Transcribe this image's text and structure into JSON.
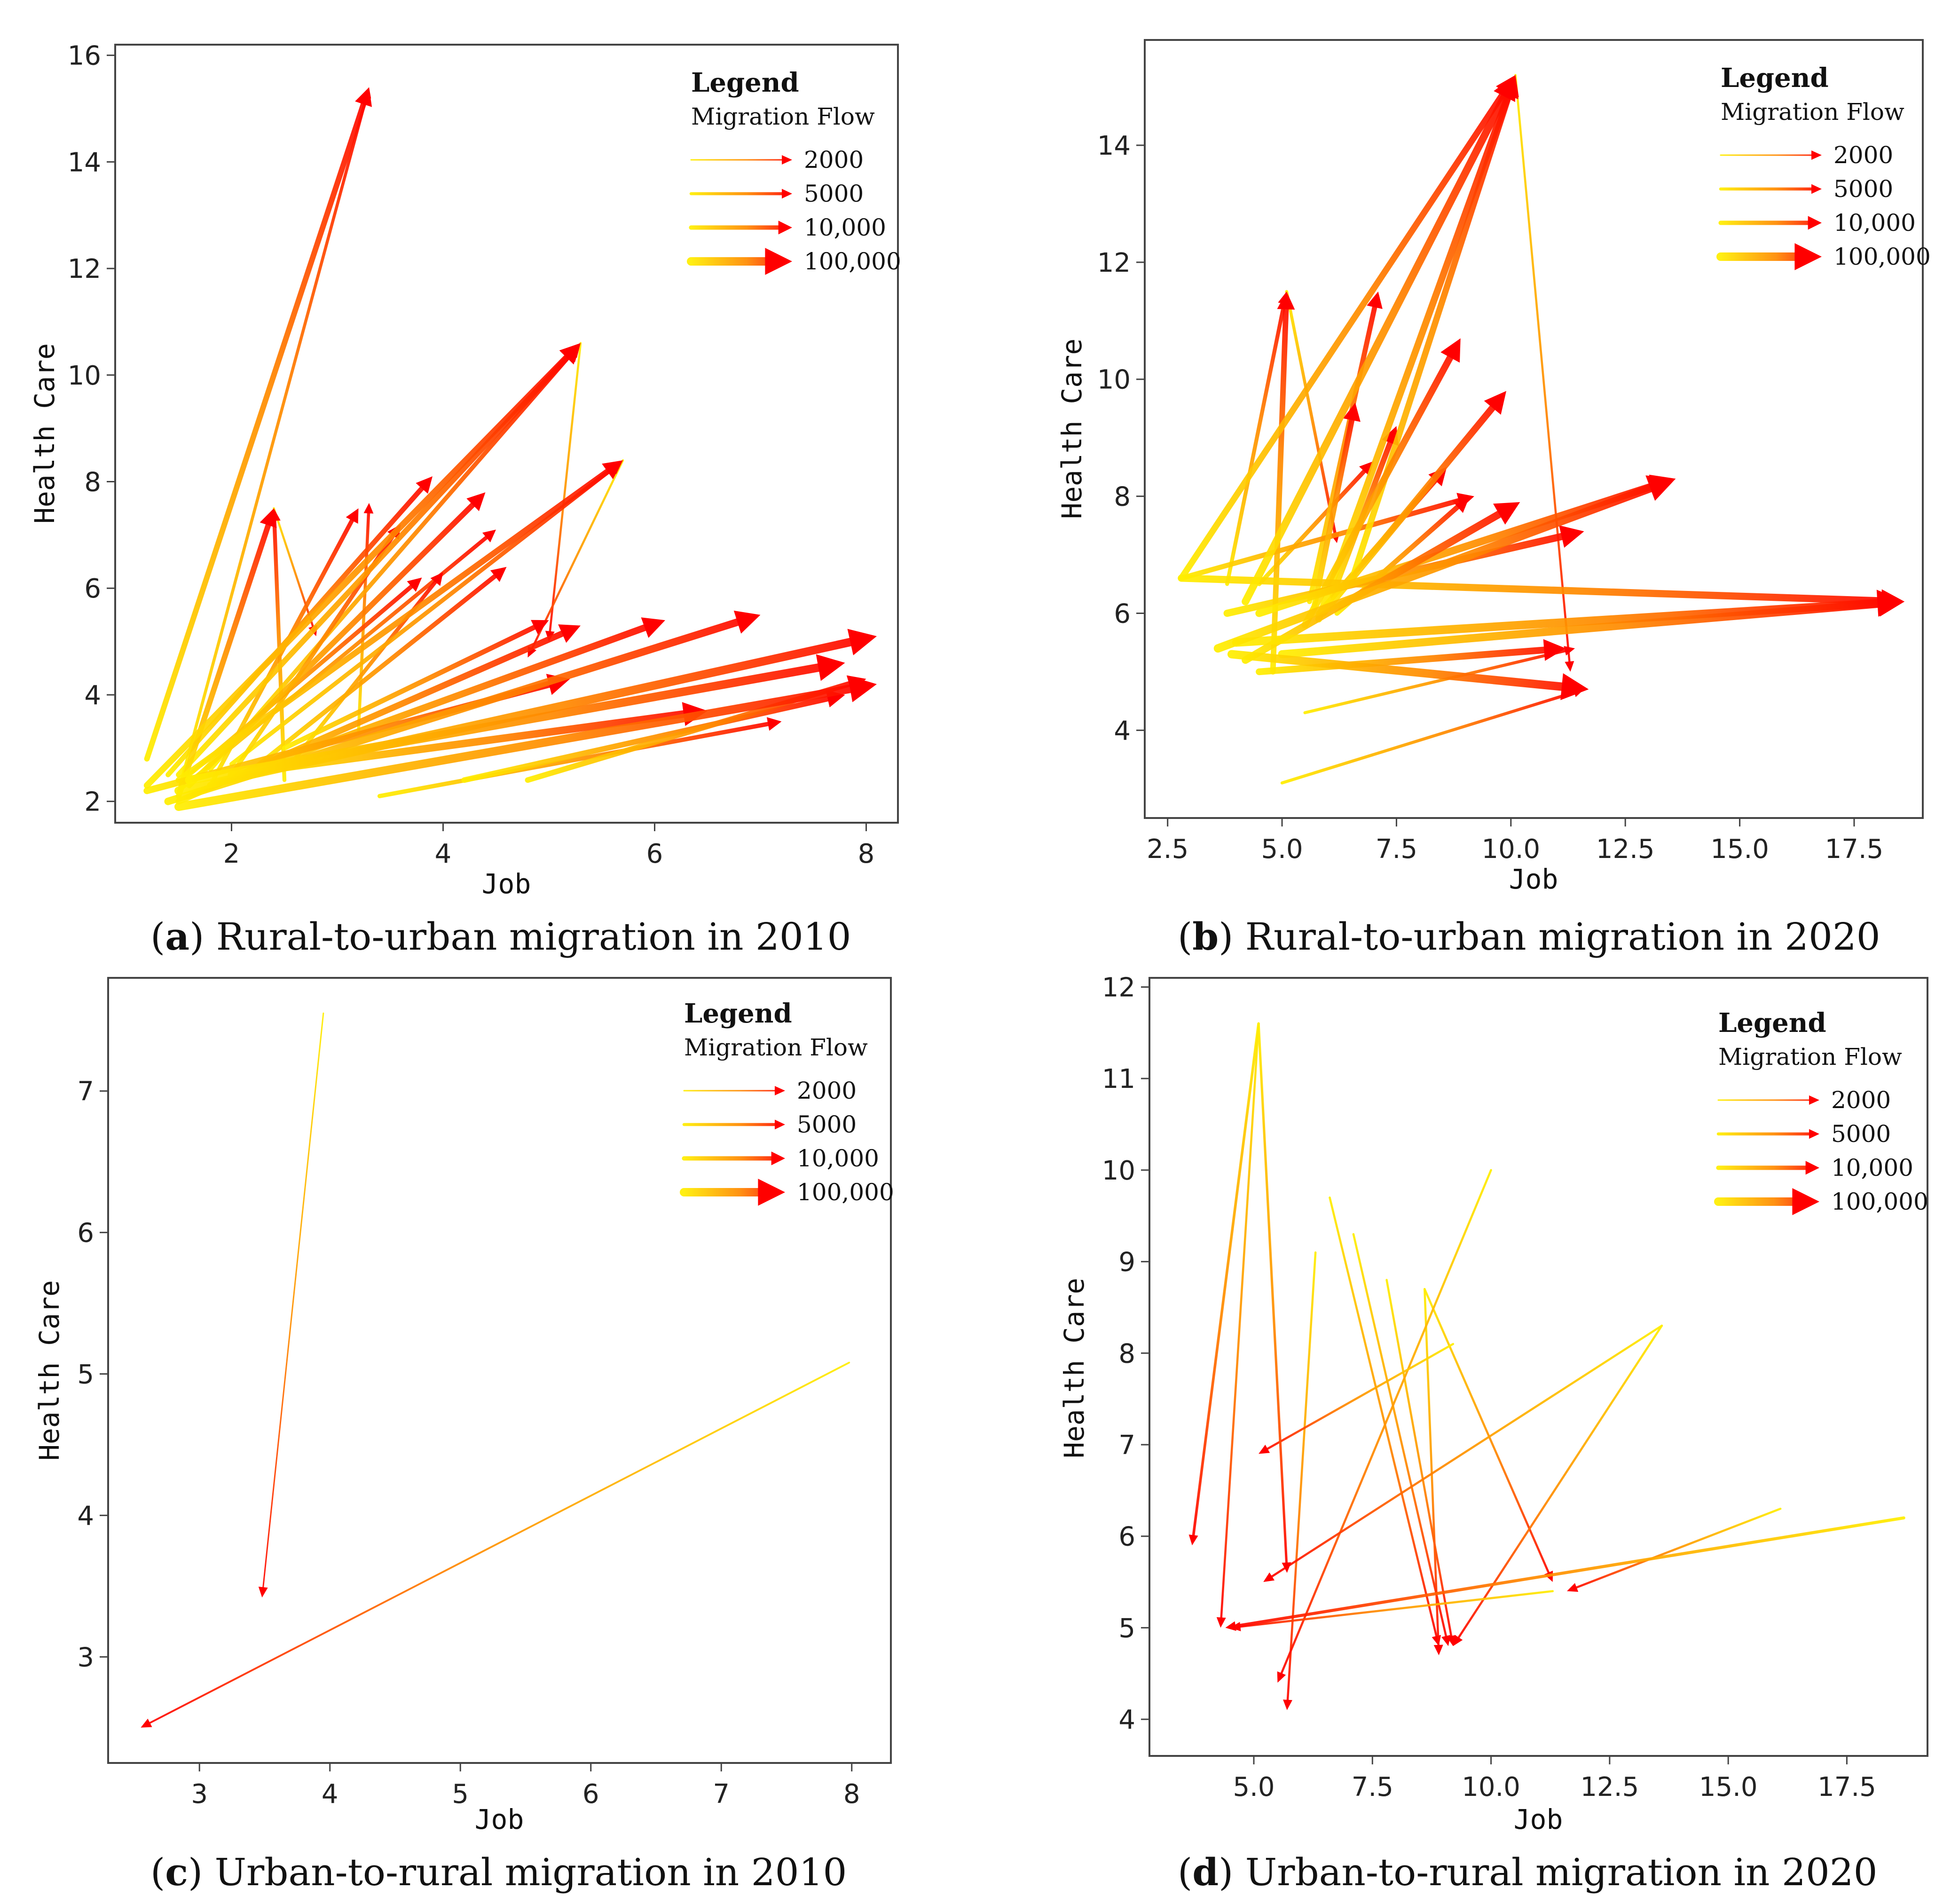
{
  "figure": {
    "panels": [
      {
        "caption_letter": "a",
        "caption_text": " Rural-to-urban migration in 2010"
      },
      {
        "caption_letter": "b",
        "caption_text": " Rural-to-urban migration in 2020"
      },
      {
        "caption_letter": "c",
        "caption_text": " Urban-to-rural migration in 2010"
      },
      {
        "caption_letter": "d",
        "caption_text": " Urban-to-rural migration in 2020"
      }
    ]
  },
  "legend": {
    "title": "Legend",
    "subtitle": "Migration Flow",
    "items": [
      {
        "label": "2000",
        "value": 2000
      },
      {
        "label": "5000",
        "value": 5000
      },
      {
        "label": "10,000",
        "value": 10000
      },
      {
        "label": "100,000",
        "value": 100000
      }
    ]
  },
  "colors": {
    "low": "#ffee00",
    "mid": "#ff8a00",
    "high": "#ff0000",
    "axis": "#444444"
  },
  "chart_data": [
    {
      "type": "flow-map",
      "title": "Rural-to-urban migration in 2010",
      "xlabel": "Job",
      "ylabel": "Health Care",
      "xlim": [
        0.9,
        8.3
      ],
      "ylim": [
        1.6,
        16.2
      ],
      "xticks": [
        2,
        4,
        6,
        8
      ],
      "xtick_labels": [
        "2",
        "4",
        "6",
        "8"
      ],
      "yticks": [
        2,
        4,
        6,
        8,
        10,
        12,
        14,
        16
      ],
      "ytick_labels": [
        "2",
        "4",
        "6",
        "8",
        "10",
        "12",
        "14",
        "16"
      ],
      "flows": [
        {
          "from": [
            1.2,
            2.8
          ],
          "to": [
            3.3,
            15.4
          ],
          "flow": 20000
        },
        {
          "from": [
            1.5,
            2.2
          ],
          "to": [
            3.3,
            15.4
          ],
          "flow": 5000
        },
        {
          "from": [
            1.2,
            2.3
          ],
          "to": [
            5.3,
            10.6
          ],
          "flow": 30000
        },
        {
          "from": [
            1.5,
            2.5
          ],
          "to": [
            5.3,
            10.6
          ],
          "flow": 20000
        },
        {
          "from": [
            1.8,
            2.6
          ],
          "to": [
            5.3,
            10.6
          ],
          "flow": 10000
        },
        {
          "from": [
            1.5,
            2.4
          ],
          "to": [
            5.7,
            8.4
          ],
          "flow": 25000
        },
        {
          "from": [
            2.0,
            2.7
          ],
          "to": [
            5.7,
            8.4
          ],
          "flow": 10000
        },
        {
          "from": [
            1.5,
            2.1
          ],
          "to": [
            2.4,
            7.5
          ],
          "flow": 20000
        },
        {
          "from": [
            2.5,
            2.4
          ],
          "to": [
            2.4,
            7.5
          ],
          "flow": 8000
        },
        {
          "from": [
            1.8,
            2.3
          ],
          "to": [
            3.2,
            7.5
          ],
          "flow": 10000
        },
        {
          "from": [
            1.4,
            2.5
          ],
          "to": [
            3.9,
            8.1
          ],
          "flow": 15000
        },
        {
          "from": [
            1.6,
            2.3
          ],
          "to": [
            4.4,
            7.8
          ],
          "flow": 20000
        },
        {
          "from": [
            2.0,
            2.5
          ],
          "to": [
            3.6,
            7.2
          ],
          "flow": 10000
        },
        {
          "from": [
            1.5,
            2.2
          ],
          "to": [
            4.5,
            7.1
          ],
          "flow": 8000
        },
        {
          "from": [
            2.2,
            2.6
          ],
          "to": [
            4.6,
            6.4
          ],
          "flow": 12000
        },
        {
          "from": [
            1.6,
            2.5
          ],
          "to": [
            3.8,
            6.2
          ],
          "flow": 10000
        },
        {
          "from": [
            1.5,
            2.0
          ],
          "to": [
            5.3,
            5.3
          ],
          "flow": 30000
        },
        {
          "from": [
            1.8,
            2.3
          ],
          "to": [
            6.1,
            5.4
          ],
          "flow": 40000
        },
        {
          "from": [
            1.4,
            2.0
          ],
          "to": [
            7.0,
            5.5
          ],
          "flow": 60000
        },
        {
          "from": [
            1.5,
            2.2
          ],
          "to": [
            8.1,
            5.1
          ],
          "flow": 100000
        },
        {
          "from": [
            1.6,
            2.4
          ],
          "to": [
            7.8,
            4.6
          ],
          "flow": 100000
        },
        {
          "from": [
            1.5,
            1.9
          ],
          "to": [
            8.1,
            4.2
          ],
          "flow": 100000
        },
        {
          "from": [
            2.0,
            2.5
          ],
          "to": [
            6.5,
            3.7
          ],
          "flow": 60000
        },
        {
          "from": [
            1.2,
            2.2
          ],
          "to": [
            5.2,
            4.3
          ],
          "flow": 40000
        },
        {
          "from": [
            3.4,
            2.1
          ],
          "to": [
            7.2,
            3.5
          ],
          "flow": 10000
        },
        {
          "from": [
            4.2,
            2.4
          ],
          "to": [
            7.8,
            4.0
          ],
          "flow": 20000
        },
        {
          "from": [
            4.8,
            2.4
          ],
          "to": [
            8.0,
            4.3
          ],
          "flow": 20000
        },
        {
          "from": [
            2.5,
            3.0
          ],
          "to": [
            5.0,
            5.4
          ],
          "flow": 15000
        },
        {
          "from": [
            3.2,
            3.3
          ],
          "to": [
            3.3,
            7.6
          ],
          "flow": 5000
        },
        {
          "from": [
            2.6,
            2.8
          ],
          "to": [
            4.0,
            6.3
          ],
          "flow": 8000
        },
        {
          "from": [
            5.3,
            10.6
          ],
          "to": [
            5.0,
            5.0
          ],
          "flow": 3000
        },
        {
          "from": [
            5.7,
            8.4
          ],
          "to": [
            4.8,
            4.7
          ],
          "flow": 3000
        },
        {
          "from": [
            2.4,
            7.5
          ],
          "to": [
            2.8,
            5.1
          ],
          "flow": 3000
        }
      ]
    },
    {
      "type": "flow-map",
      "title": "Rural-to-urban migration in 2020",
      "xlabel": "Job",
      "ylabel": "Health Care",
      "xlim": [
        2.0,
        19.0
      ],
      "ylim": [
        2.5,
        15.8
      ],
      "xticks": [
        2.5,
        5.0,
        7.5,
        10.0,
        12.5,
        15.0,
        17.5
      ],
      "xtick_labels": [
        "2.5",
        "5.0",
        "7.5",
        "10.0",
        "12.5",
        "15.0",
        "17.5"
      ],
      "yticks": [
        4,
        6,
        8,
        10,
        12,
        14
      ],
      "ytick_labels": [
        "4",
        "6",
        "8",
        "10",
        "12",
        "14"
      ],
      "flows": [
        {
          "from": [
            2.8,
            6.6
          ],
          "to": [
            10.1,
            15.2
          ],
          "flow": 30000
        },
        {
          "from": [
            4.2,
            6.2
          ],
          "to": [
            10.1,
            15.2
          ],
          "flow": 60000
        },
        {
          "from": [
            5.8,
            5.9
          ],
          "to": [
            10.1,
            15.2
          ],
          "flow": 40000
        },
        {
          "from": [
            6.5,
            6.5
          ],
          "to": [
            10.1,
            15.2
          ],
          "flow": 30000
        },
        {
          "from": [
            2.8,
            6.6
          ],
          "to": [
            18.6,
            6.2
          ],
          "flow": 50000
        },
        {
          "from": [
            4.0,
            5.5
          ],
          "to": [
            18.6,
            6.2
          ],
          "flow": 100000
        },
        {
          "from": [
            5.0,
            5.3
          ],
          "to": [
            18.6,
            6.2
          ],
          "flow": 80000
        },
        {
          "from": [
            3.6,
            5.4
          ],
          "to": [
            13.6,
            8.3
          ],
          "flow": 100000
        },
        {
          "from": [
            4.5,
            6.0
          ],
          "to": [
            13.6,
            8.3
          ],
          "flow": 60000
        },
        {
          "from": [
            3.8,
            6.0
          ],
          "to": [
            11.6,
            7.4
          ],
          "flow": 50000
        },
        {
          "from": [
            3.9,
            5.3
          ],
          "to": [
            11.7,
            4.7
          ],
          "flow": 100000
        },
        {
          "from": [
            4.5,
            5.0
          ],
          "to": [
            11.2,
            5.4
          ],
          "flow": 40000
        },
        {
          "from": [
            4.2,
            5.2
          ],
          "to": [
            10.2,
            7.9
          ],
          "flow": 60000
        },
        {
          "from": [
            4.8,
            5.0
          ],
          "to": [
            5.1,
            11.5
          ],
          "flow": 20000
        },
        {
          "from": [
            5.6,
            6.2
          ],
          "to": [
            7.1,
            11.5
          ],
          "flow": 15000
        },
        {
          "from": [
            5.5,
            5.8
          ],
          "to": [
            8.9,
            10.7
          ],
          "flow": 40000
        },
        {
          "from": [
            5.9,
            6.0
          ],
          "to": [
            9.9,
            9.8
          ],
          "flow": 40000
        },
        {
          "from": [
            5.7,
            6.1
          ],
          "to": [
            6.6,
            9.6
          ],
          "flow": 20000
        },
        {
          "from": [
            6.1,
            6.3
          ],
          "to": [
            7.5,
            9.2
          ],
          "flow": 20000
        },
        {
          "from": [
            5.8,
            6.0
          ],
          "to": [
            8.6,
            8.5
          ],
          "flow": 20000
        },
        {
          "from": [
            6.2,
            6.0
          ],
          "to": [
            9.1,
            8.0
          ],
          "flow": 15000
        },
        {
          "from": [
            5.0,
            3.1
          ],
          "to": [
            11.6,
            4.7
          ],
          "flow": 5000
        },
        {
          "from": [
            5.5,
            4.3
          ],
          "to": [
            11.4,
            5.4
          ],
          "flow": 5000
        },
        {
          "from": [
            3.8,
            6.5
          ],
          "to": [
            5.1,
            11.5
          ],
          "flow": 8000
        },
        {
          "from": [
            10.1,
            15.2
          ],
          "to": [
            11.3,
            5.0
          ],
          "flow": 3000
        },
        {
          "from": [
            5.1,
            11.5
          ],
          "to": [
            6.2,
            7.2
          ],
          "flow": 5000
        },
        {
          "from": [
            2.8,
            6.6
          ],
          "to": [
            9.2,
            8.0
          ],
          "flow": 15000
        },
        {
          "from": [
            4.5,
            6.5
          ],
          "to": [
            7.0,
            8.6
          ],
          "flow": 10000
        }
      ]
    },
    {
      "type": "flow-map",
      "title": "Urban-to-rural migration in 2010",
      "xlabel": "Job",
      "ylabel": "Health Care",
      "xlim": [
        2.3,
        8.3
      ],
      "ylim": [
        2.25,
        7.8
      ],
      "xticks": [
        3,
        4,
        5,
        6,
        7,
        8
      ],
      "xtick_labels": [
        "3",
        "4",
        "5",
        "6",
        "7",
        "8"
      ],
      "yticks": [
        3,
        4,
        5,
        6,
        7
      ],
      "ytick_labels": [
        "3",
        "4",
        "5",
        "6",
        "7"
      ],
      "flows": [
        {
          "from": [
            3.95,
            7.55
          ],
          "to": [
            3.48,
            3.42
          ],
          "flow": 2000
        },
        {
          "from": [
            7.98,
            5.08
          ],
          "to": [
            2.55,
            2.5
          ],
          "flow": 2500
        }
      ]
    },
    {
      "type": "flow-map",
      "title": "Urban-to-rural migration in 2020",
      "xlabel": "Job",
      "ylabel": "Health Care",
      "xlim": [
        2.8,
        19.2
      ],
      "ylim": [
        3.6,
        12.1
      ],
      "xticks": [
        5.0,
        7.5,
        10.0,
        12.5,
        15.0,
        17.5
      ],
      "xtick_labels": [
        "5.0",
        "7.5",
        "10.0",
        "12.5",
        "15.0",
        "17.5"
      ],
      "yticks": [
        4,
        5,
        6,
        7,
        8,
        9,
        10,
        11,
        12
      ],
      "ytick_labels": [
        "4",
        "5",
        "6",
        "7",
        "8",
        "9",
        "10",
        "11",
        "12"
      ],
      "flows": [
        {
          "from": [
            5.1,
            11.6
          ],
          "to": [
            3.7,
            5.9
          ],
          "flow": 4000
        },
        {
          "from": [
            5.1,
            11.6
          ],
          "to": [
            5.7,
            5.6
          ],
          "flow": 3500
        },
        {
          "from": [
            5.1,
            11.6
          ],
          "to": [
            4.3,
            5.0
          ],
          "flow": 3000
        },
        {
          "from": [
            6.3,
            9.1
          ],
          "to": [
            5.7,
            4.1
          ],
          "flow": 3000
        },
        {
          "from": [
            6.6,
            9.7
          ],
          "to": [
            8.9,
            4.8
          ],
          "flow": 3000
        },
        {
          "from": [
            7.1,
            9.3
          ],
          "to": [
            9.1,
            4.8
          ],
          "flow": 3000
        },
        {
          "from": [
            7.8,
            8.8
          ],
          "to": [
            9.2,
            4.8
          ],
          "flow": 3000
        },
        {
          "from": [
            8.6,
            8.7
          ],
          "to": [
            11.3,
            5.5
          ],
          "flow": 3000
        },
        {
          "from": [
            8.6,
            8.7
          ],
          "to": [
            8.9,
            4.7
          ],
          "flow": 3000
        },
        {
          "from": [
            10.0,
            10.0
          ],
          "to": [
            5.5,
            4.4
          ],
          "flow": 3000
        },
        {
          "from": [
            9.2,
            8.1
          ],
          "to": [
            5.1,
            6.9
          ],
          "flow": 3000
        },
        {
          "from": [
            13.6,
            8.3
          ],
          "to": [
            5.2,
            5.5
          ],
          "flow": 3000
        },
        {
          "from": [
            13.6,
            8.3
          ],
          "to": [
            9.2,
            4.8
          ],
          "flow": 3000
        },
        {
          "from": [
            16.1,
            6.3
          ],
          "to": [
            11.6,
            5.4
          ],
          "flow": 3000
        },
        {
          "from": [
            18.7,
            6.2
          ],
          "to": [
            4.4,
            5.0
          ],
          "flow": 5000
        },
        {
          "from": [
            11.3,
            5.4
          ],
          "to": [
            4.5,
            5.0
          ],
          "flow": 3000
        }
      ]
    }
  ]
}
